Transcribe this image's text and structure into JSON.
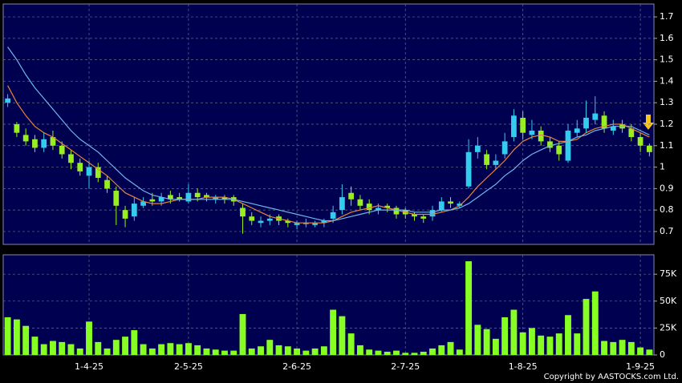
{
  "chart_data": [
    {
      "type": "candlestick",
      "open": [
        1.3,
        1.2,
        1.15,
        1.13,
        1.09,
        1.14,
        1.1,
        1.06,
        1.02,
        0.96,
        1.0,
        0.94,
        0.89,
        0.8,
        0.77,
        0.82,
        0.85,
        0.84,
        0.87,
        0.86,
        0.84,
        0.88,
        0.87,
        0.85,
        0.86,
        0.86,
        0.81,
        0.77,
        0.74,
        0.75,
        0.77,
        0.75,
        0.73,
        0.74,
        0.73,
        0.74,
        0.76,
        0.8,
        0.88,
        0.85,
        0.83,
        0.8,
        0.82,
        0.81,
        0.8,
        0.78,
        0.77,
        0.77,
        0.8,
        0.84,
        0.82,
        0.91,
        1.07,
        1.06,
        1.01,
        1.06,
        1.14,
        1.23,
        1.15,
        1.17,
        1.12,
        1.1,
        1.03,
        1.16,
        1.18,
        1.22,
        1.24,
        1.17,
        1.2,
        1.18,
        1.14,
        1.1
      ],
      "high": [
        1.34,
        1.21,
        1.18,
        1.15,
        1.16,
        1.17,
        1.12,
        1.08,
        1.04,
        1.03,
        1.02,
        0.96,
        0.91,
        0.82,
        0.86,
        0.86,
        0.88,
        0.88,
        0.89,
        0.88,
        0.92,
        0.9,
        0.88,
        0.87,
        0.87,
        0.87,
        0.83,
        0.79,
        0.77,
        0.78,
        0.78,
        0.76,
        0.75,
        0.76,
        0.75,
        0.76,
        0.82,
        0.92,
        0.91,
        0.87,
        0.85,
        0.83,
        0.83,
        0.82,
        0.81,
        0.79,
        0.78,
        0.82,
        0.86,
        0.86,
        0.84,
        1.13,
        1.14,
        1.08,
        1.06,
        1.16,
        1.27,
        1.26,
        1.22,
        1.19,
        1.14,
        1.12,
        1.2,
        1.22,
        1.31,
        1.33,
        1.26,
        1.22,
        1.22,
        1.2,
        1.16,
        1.11
      ],
      "low": [
        1.28,
        1.14,
        1.1,
        1.07,
        1.07,
        1.08,
        1.04,
        0.99,
        0.96,
        0.9,
        0.93,
        0.88,
        0.73,
        0.72,
        0.75,
        0.81,
        0.82,
        0.82,
        0.83,
        0.84,
        0.83,
        0.84,
        0.84,
        0.83,
        0.83,
        0.82,
        0.69,
        0.73,
        0.72,
        0.73,
        0.73,
        0.72,
        0.71,
        0.72,
        0.72,
        0.72,
        0.74,
        0.78,
        0.82,
        0.8,
        0.78,
        0.78,
        0.79,
        0.76,
        0.76,
        0.75,
        0.74,
        0.75,
        0.79,
        0.81,
        0.81,
        0.9,
        1.04,
        0.99,
        0.99,
        1.04,
        1.12,
        1.13,
        1.13,
        1.1,
        1.07,
        1.03,
        1.02,
        1.14,
        1.16,
        1.2,
        1.16,
        1.15,
        1.16,
        1.12,
        1.07,
        1.05
      ],
      "close": [
        1.32,
        1.16,
        1.12,
        1.09,
        1.13,
        1.1,
        1.06,
        1.02,
        0.98,
        1.0,
        0.95,
        0.9,
        0.82,
        0.76,
        0.83,
        0.84,
        0.84,
        0.86,
        0.85,
        0.85,
        0.88,
        0.86,
        0.86,
        0.86,
        0.85,
        0.84,
        0.77,
        0.75,
        0.75,
        0.76,
        0.75,
        0.74,
        0.74,
        0.74,
        0.74,
        0.75,
        0.79,
        0.86,
        0.85,
        0.82,
        0.8,
        0.81,
        0.81,
        0.78,
        0.78,
        0.77,
        0.76,
        0.8,
        0.84,
        0.83,
        0.83,
        1.07,
        1.1,
        1.01,
        1.03,
        1.12,
        1.24,
        1.16,
        1.17,
        1.12,
        1.09,
        1.06,
        1.17,
        1.18,
        1.23,
        1.25,
        1.18,
        1.19,
        1.18,
        1.14,
        1.1,
        1.07
      ],
      "up_color": "#33ccee",
      "down_color": "#99ee22",
      "series": [
        {
          "color": "#e8843c",
          "values": [
            1.38,
            1.3,
            1.24,
            1.19,
            1.16,
            1.14,
            1.11,
            1.08,
            1.05,
            1.02,
            0.99,
            0.96,
            0.92,
            0.88,
            0.86,
            0.84,
            0.83,
            0.83,
            0.84,
            0.85,
            0.85,
            0.85,
            0.86,
            0.86,
            0.86,
            0.85,
            0.83,
            0.81,
            0.79,
            0.77,
            0.76,
            0.75,
            0.74,
            0.74,
            0.74,
            0.74,
            0.75,
            0.77,
            0.79,
            0.8,
            0.81,
            0.82,
            0.81,
            0.8,
            0.79,
            0.78,
            0.78,
            0.78,
            0.79,
            0.8,
            0.82,
            0.86,
            0.91,
            0.95,
            0.99,
            1.03,
            1.08,
            1.12,
            1.14,
            1.15,
            1.14,
            1.12,
            1.12,
            1.13,
            1.16,
            1.18,
            1.19,
            1.2,
            1.2,
            1.18,
            1.16,
            1.14
          ]
        },
        {
          "color": "#6fb6e8",
          "values": [
            1.56,
            1.5,
            1.43,
            1.37,
            1.32,
            1.27,
            1.22,
            1.17,
            1.13,
            1.1,
            1.07,
            1.03,
            0.99,
            0.95,
            0.92,
            0.89,
            0.87,
            0.86,
            0.85,
            0.85,
            0.85,
            0.85,
            0.85,
            0.85,
            0.85,
            0.85,
            0.84,
            0.83,
            0.82,
            0.81,
            0.8,
            0.79,
            0.78,
            0.77,
            0.76,
            0.75,
            0.75,
            0.76,
            0.77,
            0.78,
            0.79,
            0.8,
            0.8,
            0.8,
            0.8,
            0.79,
            0.79,
            0.79,
            0.8,
            0.8,
            0.81,
            0.83,
            0.86,
            0.89,
            0.92,
            0.96,
            0.99,
            1.03,
            1.06,
            1.08,
            1.1,
            1.11,
            1.12,
            1.14,
            1.15,
            1.17,
            1.18,
            1.19,
            1.19,
            1.19,
            1.17,
            1.15
          ]
        }
      ],
      "ylim": [
        0.64,
        1.76
      ],
      "yticks": [
        0.7,
        0.8,
        0.9,
        {
          "value": 1.0,
          "label": "1"
        },
        1.1,
        1.2,
        1.3,
        1.4,
        1.5,
        1.6,
        1.7
      ],
      "grid": true
    },
    {
      "type": "bar",
      "categories": [
        null,
        null,
        null,
        null,
        null,
        null,
        null,
        null,
        null,
        "1-4-25",
        null,
        null,
        null,
        null,
        null,
        null,
        null,
        null,
        null,
        null,
        "2-5-25",
        null,
        null,
        null,
        null,
        null,
        null,
        null,
        null,
        null,
        null,
        null,
        "2-6-25",
        null,
        null,
        null,
        null,
        null,
        null,
        null,
        null,
        null,
        null,
        null,
        "2-7-25",
        null,
        null,
        null,
        null,
        null,
        null,
        null,
        null,
        null,
        null,
        null,
        null,
        "1-8-25",
        null,
        null,
        null,
        null,
        null,
        null,
        null,
        null,
        null,
        null,
        null,
        null,
        "1-9-25",
        null
      ],
      "values": [
        35000,
        33000,
        27000,
        17000,
        10000,
        13000,
        12000,
        10000,
        6000,
        31000,
        12000,
        6000,
        14000,
        17000,
        23000,
        10000,
        6000,
        10000,
        11000,
        10000,
        11000,
        9000,
        6000,
        5000,
        4000,
        4000,
        38000,
        6000,
        8000,
        14000,
        9000,
        8000,
        6000,
        4000,
        6000,
        8000,
        42000,
        36000,
        20000,
        9000,
        5000,
        4000,
        3000,
        4000,
        2000,
        2000,
        3000,
        6000,
        9000,
        12000,
        5000,
        87000,
        28000,
        24000,
        15000,
        35000,
        42000,
        21000,
        25000,
        18000,
        17000,
        20000,
        37000,
        20000,
        52000,
        59000,
        13000,
        12000,
        14000,
        12000,
        7000,
        5000
      ],
      "color": "#88ff22",
      "ylim": [
        0,
        93000
      ],
      "yticks": [
        0,
        {
          "value": 25000,
          "label": "25K"
        },
        {
          "value": 50000,
          "label": "50K"
        },
        {
          "value": 75000,
          "label": "75K"
        }
      ],
      "grid": true
    }
  ],
  "copyright": "Copyright by AASTOCKS.com Ltd."
}
